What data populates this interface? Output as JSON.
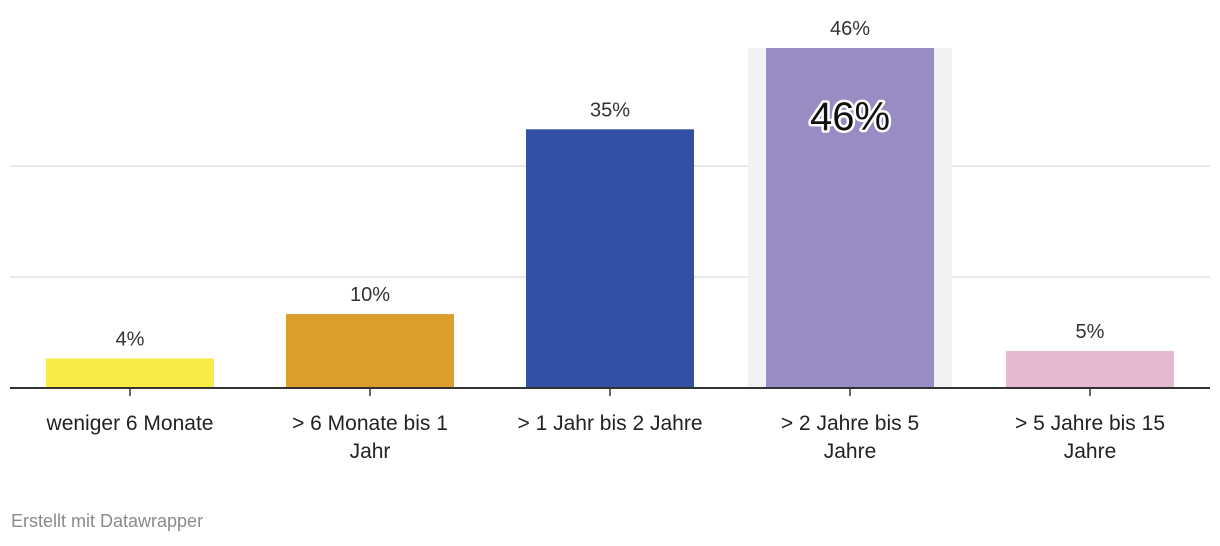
{
  "chart_data": {
    "type": "bar",
    "title": "",
    "xlabel": "",
    "ylabel": "",
    "ylim": [
      0,
      46
    ],
    "gridlines": [
      15,
      30
    ],
    "categories": [
      [
        "weniger 6 Monate"
      ],
      [
        "> 6 Monate bis 1",
        "Jahr"
      ],
      [
        "> 1 Jahr bis 2 Jahre"
      ],
      [
        "> 2 Jahre bis 5",
        "Jahre"
      ],
      [
        "> 5 Jahre bis 15",
        "Jahre"
      ]
    ],
    "values": [
      4,
      10,
      35,
      46,
      5
    ],
    "value_labels": [
      "4%",
      "10%",
      "35%",
      "46%",
      "5%"
    ],
    "colors": [
      "#f7ec47",
      "#dc9e2b",
      "#3351a4",
      "#998cc3",
      "#e4bad0"
    ],
    "highlight": {
      "index": 3,
      "label": "46%",
      "background": "#f2f2f4"
    }
  },
  "footer": {
    "credit": "Erstellt mit Datawrapper"
  }
}
